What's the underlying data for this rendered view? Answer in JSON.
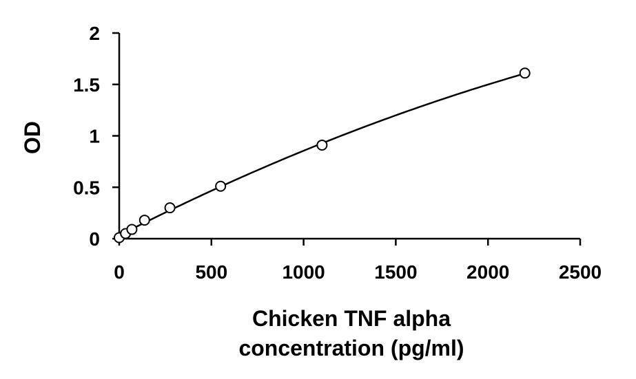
{
  "chart_data": {
    "type": "scatter",
    "title": "",
    "xlabel_lines": [
      "Chicken TNF alpha",
      "concentration (pg/ml)"
    ],
    "ylabel": "OD",
    "xlim": [
      0,
      2500
    ],
    "ylim": [
      0,
      2
    ],
    "x_ticks": [
      0,
      500,
      1000,
      1500,
      2000,
      2500
    ],
    "y_ticks": [
      0,
      0.5,
      1,
      1.5,
      2
    ],
    "x_tick_labels": [
      "0",
      "500",
      "1000",
      "1500",
      "2000",
      "2500"
    ],
    "y_tick_labels": [
      "0",
      "0.5",
      "1",
      "1.5",
      "2"
    ],
    "grid": false,
    "legend": "none",
    "series": [
      {
        "x": [
          0,
          34.4,
          68.8,
          137.5,
          275,
          550,
          1100,
          2200
        ],
        "y": [
          0.01,
          0.05,
          0.09,
          0.18,
          0.3,
          0.51,
          0.91,
          1.61
        ],
        "marker": "open-circle",
        "trendline": "smooth-curve"
      }
    ],
    "colors": {
      "axis": "#000000",
      "marker": "#000000",
      "line": "#000000"
    }
  }
}
